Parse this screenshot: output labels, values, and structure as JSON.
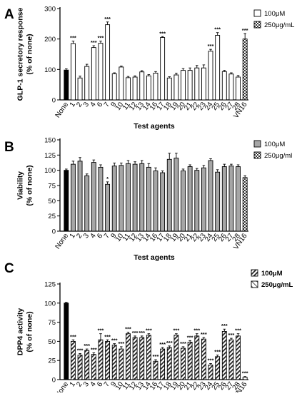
{
  "chart_data": [
    {
      "panel_letter": "A",
      "type": "bar",
      "ylabel": "GLP-1 secretory response\n(% of none)",
      "xlabel": "Test agents",
      "ylim": [
        0,
        300
      ],
      "yticks": [
        0,
        100,
        200,
        300
      ],
      "categories": [
        "None",
        "1",
        "2",
        "3",
        "4",
        "6",
        "7",
        "9",
        "10",
        "11",
        "12",
        "13",
        "14",
        "16",
        "17",
        "18",
        "19",
        "20",
        "21",
        "22",
        "23",
        "24",
        "25",
        "26",
        "27",
        "28",
        "VN16"
      ],
      "values": [
        98,
        185,
        72,
        110,
        172,
        186,
        247,
        86,
        108,
        73,
        75,
        92,
        79,
        88,
        205,
        72,
        82,
        97,
        97,
        105,
        105,
        160,
        212,
        93,
        85,
        75,
        200
      ],
      "errors": [
        4,
        8,
        6,
        7,
        6,
        7,
        9,
        3,
        3,
        4,
        4,
        4,
        4,
        5,
        3,
        4,
        6,
        6,
        8,
        8,
        10,
        6,
        9,
        4,
        4,
        5,
        18
      ],
      "significance": [
        "",
        "***",
        "",
        "",
        "***",
        "***",
        "***",
        "",
        "",
        "",
        "",
        "",
        "",
        "",
        "***",
        "",
        "",
        "",
        "",
        "",
        "",
        "***",
        "***",
        "",
        "",
        "",
        "***"
      ],
      "bar_styles": [
        "black",
        "white",
        "white",
        "white",
        "white",
        "white",
        "white",
        "white",
        "white",
        "white",
        "white",
        "white",
        "white",
        "white",
        "white",
        "white",
        "white",
        "white",
        "white",
        "white",
        "white",
        "white",
        "white",
        "white",
        "white",
        "white",
        "checker"
      ],
      "legend": [
        {
          "label": "100μM",
          "style": "white"
        },
        {
          "label": "250μg/mL",
          "style": "checker"
        }
      ],
      "legend_position": "top-right",
      "grid": false
    },
    {
      "panel_letter": "B",
      "type": "bar",
      "ylabel": "Viability\n(% of none)",
      "xlabel": "Test agents",
      "ylim": [
        0,
        150
      ],
      "yticks": [
        0,
        25,
        50,
        75,
        100,
        125,
        150
      ],
      "categories": [
        "None",
        "1",
        "2",
        "3",
        "4",
        "6",
        "7",
        "9",
        "10",
        "11",
        "12",
        "13",
        "14",
        "16",
        "17",
        "18",
        "19",
        "20",
        "21",
        "22",
        "23",
        "24",
        "25",
        "26",
        "27",
        "28",
        "VN16"
      ],
      "values": [
        100,
        110,
        115,
        91,
        113,
        105,
        77,
        107,
        108,
        111,
        110,
        111,
        105,
        99,
        96,
        118,
        120,
        99,
        106,
        100,
        104,
        116,
        97,
        106,
        107,
        106,
        88
      ],
      "errors": [
        2,
        5,
        6,
        3,
        4,
        4,
        4,
        5,
        4,
        5,
        4,
        5,
        6,
        5,
        3,
        10,
        8,
        3,
        3,
        3,
        4,
        3,
        4,
        4,
        3,
        3,
        3
      ],
      "significance": [
        "",
        "",
        "",
        "",
        "",
        "",
        "*",
        "",
        "",
        "",
        "",
        "",
        "",
        "",
        "",
        "",
        "",
        "",
        "",
        "",
        "",
        "",
        "",
        "",
        "",
        "",
        ""
      ],
      "bar_styles": [
        "black",
        "gray",
        "gray",
        "gray",
        "gray",
        "gray",
        "gray",
        "gray",
        "gray",
        "gray",
        "gray",
        "gray",
        "gray",
        "gray",
        "gray",
        "gray",
        "gray",
        "gray",
        "gray",
        "gray",
        "gray",
        "gray",
        "gray",
        "gray",
        "gray",
        "gray",
        "checker"
      ],
      "legend": [
        {
          "label": "100μM",
          "style": "gray"
        },
        {
          "label": "250μg/ml",
          "style": "checker"
        }
      ],
      "legend_position": "top-right",
      "grid": false
    },
    {
      "panel_letter": "C",
      "type": "bar",
      "ylabel": "DPP4 activity\n(% of none)",
      "xlabel": "Test agents",
      "ylim": [
        0,
        125
      ],
      "yticks": [
        0,
        25,
        50,
        75,
        100,
        125
      ],
      "categories": [
        "None",
        "1",
        "2",
        "3",
        "4",
        "6",
        "7",
        "9",
        "10",
        "11",
        "12",
        "13",
        "14",
        "16",
        "17",
        "18",
        "19",
        "20",
        "21",
        "22",
        "23",
        "24",
        "25",
        "26",
        "27",
        "28",
        "VN16"
      ],
      "values": [
        100,
        50,
        32,
        38,
        33,
        52,
        50,
        45,
        40,
        60,
        55,
        55,
        58,
        24,
        40,
        42,
        58,
        41,
        49,
        57,
        53,
        19,
        30,
        63,
        52,
        57,
        3
      ],
      "errors": [
        1,
        2,
        2,
        2,
        2,
        8,
        2,
        2,
        3,
        2,
        2,
        2,
        2,
        2,
        2,
        2,
        2,
        2,
        2,
        3,
        2,
        2,
        2,
        3,
        2,
        3,
        1
      ],
      "significance": [
        "",
        "***",
        "***",
        "***",
        "***",
        "***",
        "***",
        "***",
        "***",
        "***",
        "***",
        "***",
        "***",
        "***",
        "***",
        "***",
        "***",
        "***",
        "***",
        "***",
        "***",
        "***",
        "***",
        "***",
        "***",
        "***",
        "***"
      ],
      "bar_styles": [
        "black",
        "hatch",
        "hatch",
        "hatch",
        "hatch",
        "hatch",
        "hatch",
        "hatch",
        "hatch",
        "hatch",
        "hatch",
        "hatch",
        "hatch",
        "hatch",
        "hatch",
        "hatch",
        "hatch",
        "hatch",
        "hatch",
        "hatch",
        "hatch",
        "hatch",
        "hatch",
        "hatch",
        "hatch",
        "hatch",
        "hatch-white"
      ],
      "legend": [
        {
          "label": "100μM",
          "style": "hatch",
          "bold": true
        },
        {
          "label": "250μg/mL",
          "style": "hatch-white",
          "bold": true
        }
      ],
      "legend_position": "top-right",
      "grid": false
    }
  ]
}
